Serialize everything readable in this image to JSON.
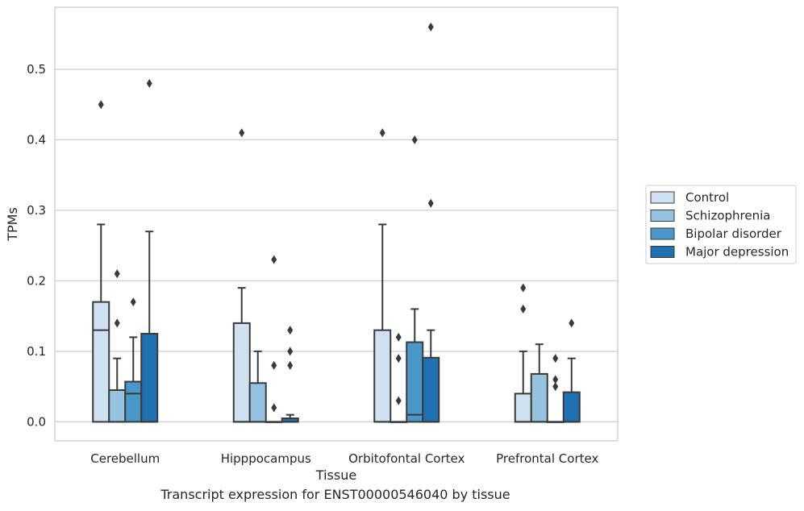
{
  "caption": "Transcript expression for ENST00000546040 by tissue",
  "chart_data": {
    "type": "box",
    "title": "",
    "xlabel": "Tissue",
    "ylabel": "TPMs",
    "ylim": [
      -0.027,
      0.588
    ],
    "yticks": [
      0.0,
      0.1,
      0.2,
      0.3,
      0.4,
      0.5
    ],
    "ytick_labels": [
      "0.0",
      "0.1",
      "0.2",
      "0.3",
      "0.4",
      "0.5"
    ],
    "grid": "horizontal",
    "legend_position": "right",
    "categories": [
      "Cerebellum",
      "Hipppocampus",
      "Orbitofontal Cortex",
      "Prefrontal Cortex"
    ],
    "series": [
      {
        "name": "Control",
        "color": "#d0e1f2",
        "boxes": [
          {
            "q1": 0.0,
            "median": 0.13,
            "q3": 0.17,
            "whisker_low": 0.0,
            "whisker_high": 0.28,
            "outliers": [
              0.45
            ]
          },
          {
            "q1": 0.0,
            "median": 0.0,
            "q3": 0.14,
            "whisker_low": 0.0,
            "whisker_high": 0.19,
            "outliers": [
              0.41
            ]
          },
          {
            "q1": 0.0,
            "median": 0.0,
            "q3": 0.13,
            "whisker_low": 0.0,
            "whisker_high": 0.28,
            "outliers": [
              0.41
            ]
          },
          {
            "q1": 0.0,
            "median": 0.0,
            "q3": 0.04,
            "whisker_low": 0.0,
            "whisker_high": 0.1,
            "outliers": [
              0.16,
              0.19
            ]
          }
        ]
      },
      {
        "name": "Schizophrenia",
        "color": "#94c4df",
        "boxes": [
          {
            "q1": 0.0,
            "median": 0.0,
            "q3": 0.045,
            "whisker_low": 0.0,
            "whisker_high": 0.09,
            "outliers": [
              0.14,
              0.21
            ]
          },
          {
            "q1": 0.0,
            "median": 0.0,
            "q3": 0.055,
            "whisker_low": 0.0,
            "whisker_high": 0.1,
            "outliers": []
          },
          {
            "q1": 0.0,
            "median": 0.0,
            "q3": 0.0,
            "whisker_low": 0.0,
            "whisker_high": 0.0,
            "outliers": [
              0.03,
              0.09,
              0.12
            ]
          },
          {
            "q1": 0.0,
            "median": 0.0,
            "q3": 0.068,
            "whisker_low": 0.0,
            "whisker_high": 0.11,
            "outliers": []
          }
        ]
      },
      {
        "name": "Bipolar disorder",
        "color": "#4a98c9",
        "boxes": [
          {
            "q1": 0.0,
            "median": 0.04,
            "q3": 0.057,
            "whisker_low": 0.0,
            "whisker_high": 0.12,
            "outliers": [
              0.17
            ]
          },
          {
            "q1": 0.0,
            "median": 0.0,
            "q3": 0.0,
            "whisker_low": 0.0,
            "whisker_high": 0.0,
            "outliers": [
              0.02,
              0.08,
              0.23
            ]
          },
          {
            "q1": 0.0,
            "median": 0.01,
            "q3": 0.113,
            "whisker_low": 0.0,
            "whisker_high": 0.16,
            "outliers": [
              0.4
            ]
          },
          {
            "q1": 0.0,
            "median": 0.0,
            "q3": 0.0,
            "whisker_low": 0.0,
            "whisker_high": 0.0,
            "outliers": [
              0.05,
              0.06,
              0.09
            ]
          }
        ]
      },
      {
        "name": "Major depression",
        "color": "#2070b4",
        "boxes": [
          {
            "q1": 0.0,
            "median": 0.0,
            "q3": 0.125,
            "whisker_low": 0.0,
            "whisker_high": 0.27,
            "outliers": [
              0.48
            ]
          },
          {
            "q1": 0.0,
            "median": 0.0,
            "q3": 0.005,
            "whisker_low": 0.0,
            "whisker_high": 0.01,
            "outliers": [
              0.08,
              0.1,
              0.13
            ]
          },
          {
            "q1": 0.0,
            "median": 0.0,
            "q3": 0.091,
            "whisker_low": 0.0,
            "whisker_high": 0.13,
            "outliers": [
              0.31,
              0.56
            ]
          },
          {
            "q1": 0.0,
            "median": 0.0,
            "q3": 0.042,
            "whisker_low": 0.0,
            "whisker_high": 0.09,
            "outliers": [
              0.14
            ]
          }
        ]
      }
    ]
  }
}
